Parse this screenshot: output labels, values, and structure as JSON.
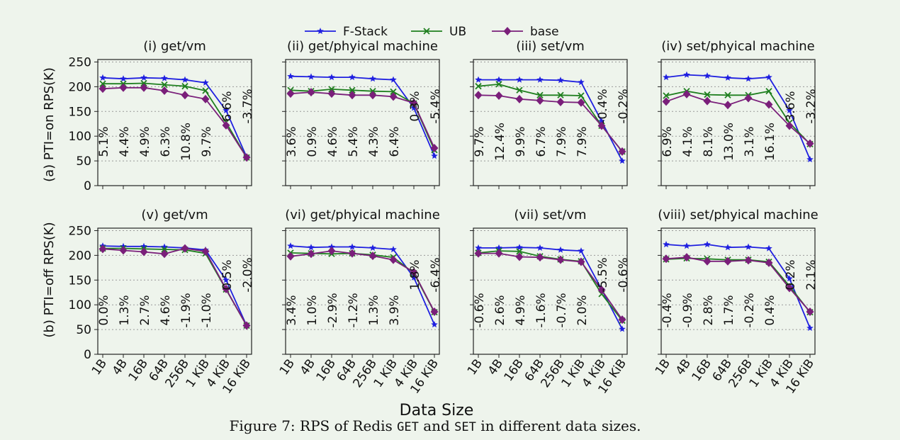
{
  "figure": {
    "caption": {
      "prefix": "Figure 7: RPS of Redis ",
      "get": "GET",
      "and": " and ",
      "set": "SET",
      "suffix": " in different data sizes."
    },
    "xlabel": "Data Size",
    "row_labels": [
      "(a) PTI=on RPS(K)",
      "(b) PTI=off RPS(K)"
    ],
    "legend": [
      {
        "name": "F-Stack",
        "color": "#1f1fe0",
        "marker": "star"
      },
      {
        "name": "UB",
        "color": "#1f7f1f",
        "marker": "x"
      },
      {
        "name": "base",
        "color": "#7a1f7a",
        "marker": "diamond"
      }
    ]
  },
  "chart_data": [
    {
      "type": "line",
      "title": "(i) get/vm",
      "categories": [
        "1B",
        "4B",
        "16B",
        "64B",
        "256B",
        "1 KiB",
        "4 KiB",
        "16 KiB"
      ],
      "yticks": [
        0,
        50,
        100,
        150,
        200,
        250
      ],
      "ylim": [
        0,
        255
      ],
      "grid": "horizontal dotted",
      "series": [
        {
          "name": "F-Stack",
          "values": [
            218,
            216,
            218,
            217,
            214,
            208,
            152,
            58
          ]
        },
        {
          "name": "UB",
          "values": [
            206,
            206,
            207,
            204,
            201,
            192,
            128,
            57
          ]
        },
        {
          "name": "base",
          "values": [
            196,
            198,
            198,
            192,
            183,
            175,
            122,
            57
          ]
        }
      ],
      "annotations": [
        "5.1%",
        "4.4%",
        "4.9%",
        "6.3%",
        "10.8%",
        "9.7%",
        "6.6%",
        "-3.7%"
      ]
    },
    {
      "type": "line",
      "title": "(ii) get/phyical machine",
      "categories": [
        "1B",
        "4B",
        "16B",
        "64B",
        "256B",
        "1 KiB",
        "4 KiB",
        "16 KiB"
      ],
      "yticks": [
        0,
        50,
        100,
        150,
        200,
        250
      ],
      "ylim": [
        0,
        255
      ],
      "grid": "horizontal dotted",
      "series": [
        {
          "name": "F-Stack",
          "values": [
            221,
            220,
            219,
            219,
            216,
            214,
            157,
            60
          ]
        },
        {
          "name": "UB",
          "values": [
            193,
            191,
            195,
            193,
            191,
            190,
            166,
            72
          ]
        },
        {
          "name": "base",
          "values": [
            186,
            189,
            186,
            183,
            183,
            180,
            167,
            76
          ]
        }
      ],
      "annotations": [
        "3.6%",
        "0.9%",
        "4.6%",
        "5.4%",
        "4.3%",
        "6.4%",
        "0.3%",
        "-5.4%"
      ]
    },
    {
      "type": "line",
      "title": "(iii) set/vm",
      "categories": [
        "1B",
        "4B",
        "16B",
        "64B",
        "256B",
        "1 KiB",
        "4 KiB",
        "16 KiB"
      ],
      "yticks": [
        0,
        50,
        100,
        150,
        200,
        250
      ],
      "ylim": [
        0,
        255
      ],
      "grid": "horizontal dotted",
      "series": [
        {
          "name": "F-Stack",
          "values": [
            214,
            214,
            214,
            214,
            213,
            209,
            130,
            50
          ]
        },
        {
          "name": "UB",
          "values": [
            201,
            205,
            193,
            183,
            183,
            182,
            121,
            69
          ]
        },
        {
          "name": "base",
          "values": [
            183,
            182,
            175,
            172,
            169,
            168,
            121,
            69
          ]
        }
      ],
      "annotations": [
        "9.7%",
        "12.4%",
        "9.9%",
        "6.7%",
        "7.9%",
        "7.9%",
        "-0.4%",
        "-0.2%"
      ]
    },
    {
      "type": "line",
      "title": "(iv) set/phyical machine",
      "categories": [
        "1B",
        "4B",
        "16B",
        "64B",
        "256B",
        "1 KiB",
        "4 KiB",
        "16 KiB"
      ],
      "yticks": [
        0,
        50,
        100,
        150,
        200,
        250
      ],
      "ylim": [
        0,
        255
      ],
      "grid": "horizontal dotted",
      "series": [
        {
          "name": "F-Stack",
          "values": [
            219,
            224,
            222,
            218,
            216,
            219,
            152,
            53
          ]
        },
        {
          "name": "UB",
          "values": [
            182,
            191,
            184,
            183,
            183,
            191,
            127,
            84
          ]
        },
        {
          "name": "base",
          "values": [
            170,
            185,
            171,
            163,
            177,
            164,
            121,
            85
          ]
        }
      ],
      "annotations": [
        "6.9%",
        "4.1%",
        "8.1%",
        "13.0%",
        "3.1%",
        "16.1%",
        "3.6%",
        "-3.2%"
      ]
    },
    {
      "type": "line",
      "title": "(v) get/vm",
      "categories": [
        "1B",
        "4B",
        "16B",
        "64B",
        "256B",
        "1 KiB",
        "4 KiB",
        "16 KiB"
      ],
      "yticks": [
        0,
        50,
        100,
        150,
        200,
        250
      ],
      "ylim": [
        0,
        255
      ],
      "grid": "horizontal dotted",
      "series": [
        {
          "name": "F-Stack",
          "values": [
            219,
            218,
            218,
            217,
            215,
            211,
            150,
            58
          ]
        },
        {
          "name": "UB",
          "values": [
            214,
            214,
            213,
            212,
            211,
            204,
            131,
            58
          ]
        },
        {
          "name": "base",
          "values": [
            213,
            210,
            207,
            203,
            214,
            208,
            132,
            58
          ]
        }
      ],
      "annotations": [
        "0.0%",
        "1.3%",
        "2.7%",
        "4.6%",
        "-1.9%",
        "-1.0%",
        "0.5%",
        "-2.0%"
      ]
    },
    {
      "type": "line",
      "title": "(vi) get/phyical machine",
      "categories": [
        "1B",
        "4B",
        "16B",
        "64B",
        "256B",
        "1 KiB",
        "4 KiB",
        "16 KiB"
      ],
      "yticks": [
        0,
        50,
        100,
        150,
        200,
        250
      ],
      "ylim": [
        0,
        255
      ],
      "grid": "horizontal dotted",
      "series": [
        {
          "name": "F-Stack",
          "values": [
            219,
            216,
            217,
            217,
            215,
            212,
            155,
            60
          ]
        },
        {
          "name": "UB",
          "values": [
            205,
            204,
            203,
            204,
            201,
            196,
            164,
            85
          ]
        },
        {
          "name": "base",
          "values": [
            198,
            203,
            209,
            204,
            199,
            191,
            166,
            86
          ]
        }
      ],
      "annotations": [
        "3.4%",
        "1.0%",
        "-2.9%",
        "-1.2%",
        "1.3%",
        "3.9%",
        "1.8%",
        "-6.4%"
      ]
    },
    {
      "type": "line",
      "title": "(vii) set/vm",
      "categories": [
        "1B",
        "4B",
        "16B",
        "64B",
        "256B",
        "1 KiB",
        "4 KiB",
        "16 KiB"
      ],
      "yticks": [
        0,
        50,
        100,
        150,
        200,
        250
      ],
      "ylim": [
        0,
        255
      ],
      "grid": "horizontal dotted",
      "series": [
        {
          "name": "F-Stack",
          "values": [
            215,
            215,
            216,
            215,
            211,
            209,
            131,
            51
          ]
        },
        {
          "name": "UB",
          "values": [
            205,
            209,
            208,
            198,
            192,
            188,
            122,
            68
          ]
        },
        {
          "name": "base",
          "values": [
            204,
            204,
            197,
            196,
            191,
            187,
            130,
            70
          ]
        }
      ],
      "annotations": [
        "-0.6%",
        "2.6%",
        "4.9%",
        "-1.6%",
        "-0.7%",
        "2.0%",
        "-5.5%",
        "-0.6%"
      ]
    },
    {
      "type": "line",
      "title": "(viii) set/phyical machine",
      "categories": [
        "1B",
        "4B",
        "16B",
        "64B",
        "256B",
        "1 KiB",
        "4 KiB",
        "16 KiB"
      ],
      "yticks": [
        0,
        50,
        100,
        150,
        200,
        250
      ],
      "ylim": [
        0,
        255
      ],
      "grid": "horizontal dotted",
      "series": [
        {
          "name": "F-Stack",
          "values": [
            222,
            219,
            222,
            216,
            217,
            214,
            153,
            53
          ]
        },
        {
          "name": "UB",
          "values": [
            192,
            194,
            193,
            191,
            191,
            187,
            138,
            85
          ]
        },
        {
          "name": "base",
          "values": [
            193,
            196,
            188,
            188,
            190,
            185,
            134,
            86
          ]
        }
      ],
      "annotations": [
        "-0.4%",
        "-0.9%",
        "2.8%",
        "1.7%",
        "-0.2%",
        "0.4%",
        "0.2%",
        "2.1%"
      ]
    }
  ]
}
